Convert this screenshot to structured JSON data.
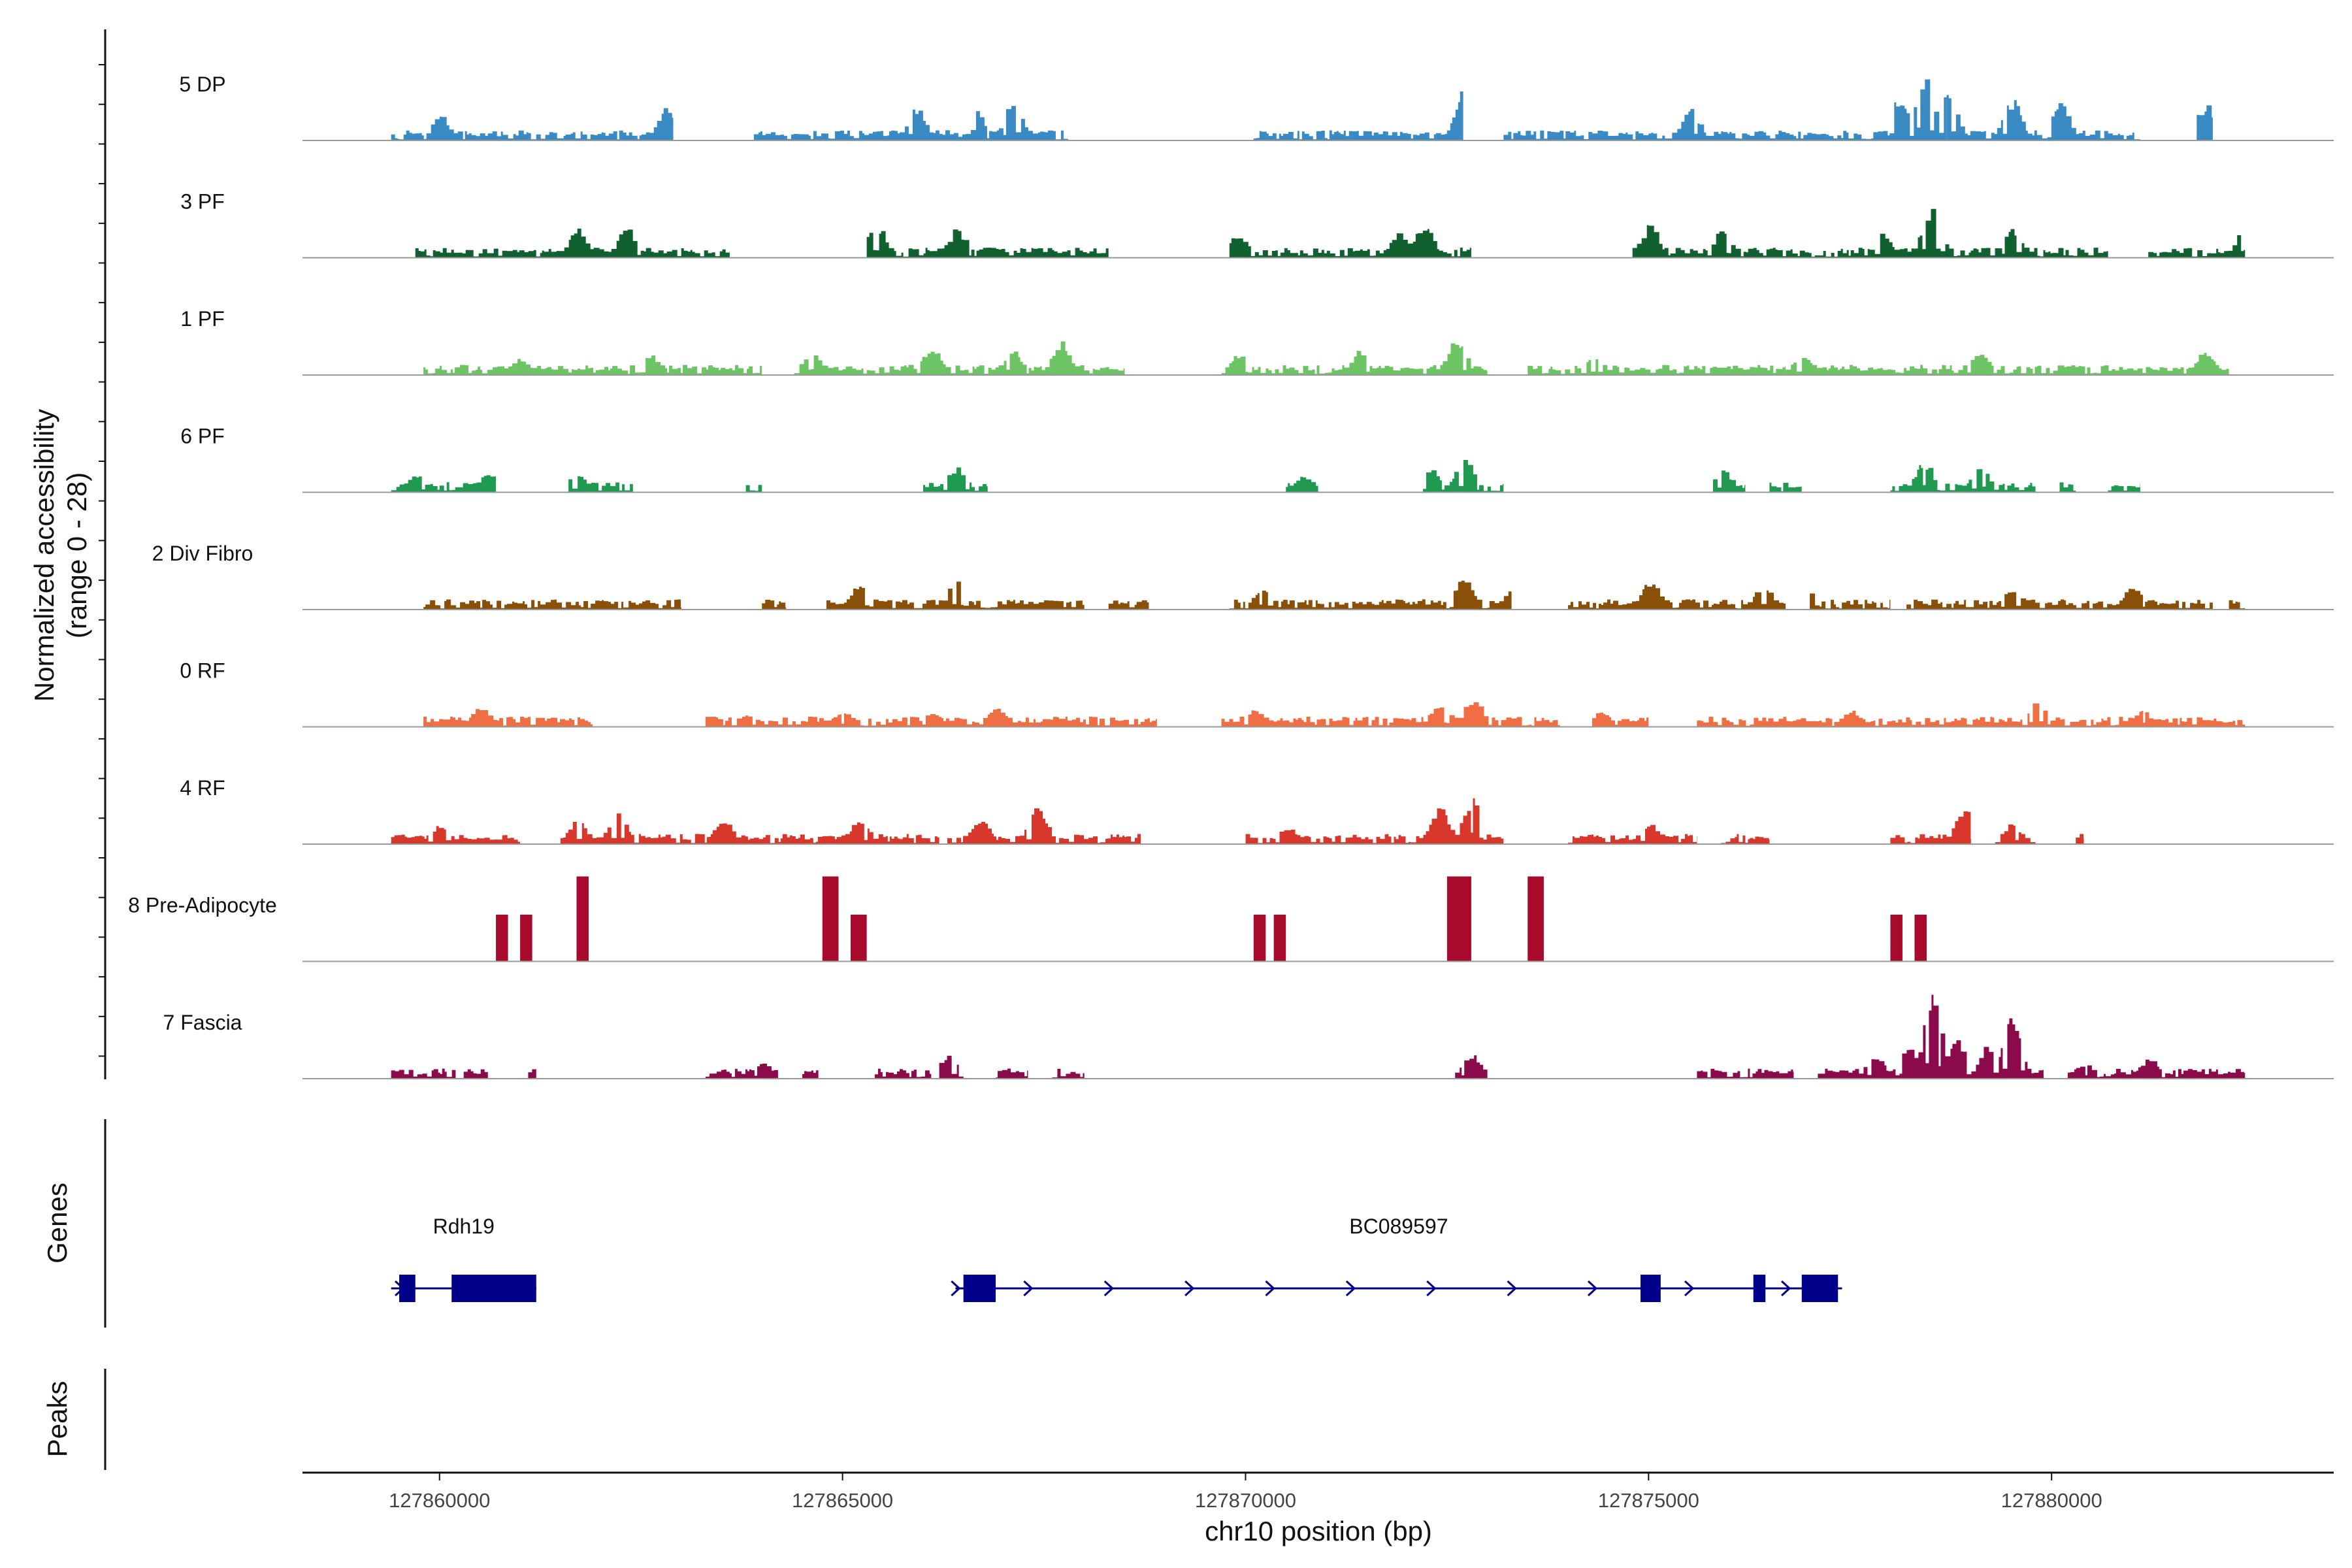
{
  "chart_data": {
    "type": "area",
    "title": "",
    "y_axis_title_line1": "Normalized accessibility",
    "y_axis_title_line2": "(range 0 - 28)",
    "ylim": [
      0,
      28
    ],
    "xlabel": "chr10 position (bp)",
    "xlim": [
      127858300,
      127883500
    ],
    "x_ticks": [
      127860000,
      127865000,
      127870000,
      127875000,
      127880000
    ],
    "x_tick_labels": [
      "127860000",
      "127865000",
      "127870000",
      "127875000",
      "127880000"
    ],
    "genes_panel_label": "Genes",
    "peaks_panel_label": "Peaks",
    "peaks": [],
    "tracks": [
      {
        "name": "5 DP",
        "color": "#3a8ac4",
        "regions": [
          [
            127859400,
            127862900
          ],
          [
            127863900,
            127867800
          ],
          [
            127870100,
            127872700
          ],
          [
            127873200,
            127878700
          ],
          [
            127878700,
            127881100
          ],
          [
            127881800,
            127882000
          ]
        ],
        "peaks": [
          [
            127860000,
            0.3
          ],
          [
            127862800,
            0.45
          ],
          [
            127865900,
            0.4
          ],
          [
            127866600,
            0.5
          ],
          [
            127867100,
            0.45
          ],
          [
            127872700,
            0.65
          ],
          [
            127875500,
            0.4
          ],
          [
            127878100,
            0.55
          ],
          [
            127878400,
            0.75
          ],
          [
            127878700,
            0.6
          ],
          [
            127879500,
            0.5
          ],
          [
            127880100,
            0.45
          ],
          [
            127881900,
            0.45
          ]
        ]
      },
      {
        "name": "3 PF",
        "color": "#11602f",
        "regions": [
          [
            127859700,
            127863600
          ],
          [
            127865300,
            127868300
          ],
          [
            127869800,
            127872800
          ],
          [
            127874800,
            127878300
          ],
          [
            127878300,
            127880700
          ],
          [
            127881200,
            127882400
          ]
        ],
        "peaks": [
          [
            127861700,
            0.35
          ],
          [
            127862300,
            0.35
          ],
          [
            127865400,
            0.4
          ],
          [
            127866400,
            0.35
          ],
          [
            127869900,
            0.3
          ],
          [
            127871900,
            0.3
          ],
          [
            127872200,
            0.4
          ],
          [
            127875000,
            0.4
          ],
          [
            127875900,
            0.35
          ],
          [
            127877900,
            0.3
          ],
          [
            127878500,
            0.65
          ],
          [
            127879500,
            0.35
          ],
          [
            127882400,
            0.4
          ]
        ]
      },
      {
        "name": "1 PF",
        "color": "#6cc464",
        "regions": [
          [
            127859800,
            127864000
          ],
          [
            127864400,
            127868500
          ],
          [
            127869700,
            127873000
          ],
          [
            127873500,
            127876700
          ],
          [
            127876700,
            127878600
          ],
          [
            127878600,
            127882200
          ]
        ],
        "peaks": [
          [
            127861000,
            0.2
          ],
          [
            127862600,
            0.25
          ],
          [
            127864600,
            0.3
          ],
          [
            127866100,
            0.35
          ],
          [
            127867100,
            0.3
          ],
          [
            127867700,
            0.4
          ],
          [
            127869900,
            0.25
          ],
          [
            127871400,
            0.3
          ],
          [
            127872600,
            0.45
          ],
          [
            127874300,
            0.2
          ],
          [
            127876900,
            0.25
          ],
          [
            127879100,
            0.3
          ],
          [
            127881900,
            0.3
          ]
        ]
      },
      {
        "name": "6 PF",
        "color": "#1f9a50",
        "regions": [
          [
            127859400,
            127860700
          ],
          [
            127861600,
            127862400
          ],
          [
            127863800,
            127864000
          ],
          [
            127866000,
            127866800
          ],
          [
            127870500,
            127870900
          ],
          [
            127872200,
            127873200
          ],
          [
            127875800,
            127876200
          ],
          [
            127876500,
            127876900
          ],
          [
            127878000,
            127879800
          ],
          [
            127880100,
            127880300
          ],
          [
            127880700,
            127881100
          ]
        ],
        "peaks": [
          [
            127859700,
            0.2
          ],
          [
            127860600,
            0.25
          ],
          [
            127861700,
            0.25
          ],
          [
            127866400,
            0.3
          ],
          [
            127870700,
            0.2
          ],
          [
            127872300,
            0.3
          ],
          [
            127872700,
            0.4
          ],
          [
            127875900,
            0.3
          ],
          [
            127878400,
            0.35
          ],
          [
            127879100,
            0.3
          ]
        ]
      },
      {
        "name": "2 Div Fibro",
        "color": "#8a500a",
        "regions": [
          [
            127859800,
            127863000
          ],
          [
            127864000,
            127864300
          ],
          [
            127864800,
            127868000
          ],
          [
            127868300,
            127868800
          ],
          [
            127869800,
            127873300
          ],
          [
            127874000,
            127876700
          ],
          [
            127877000,
            127878000
          ],
          [
            127878200,
            127882000
          ],
          [
            127882200,
            127882400
          ]
        ],
        "peaks": [
          [
            127865200,
            0.3
          ],
          [
            127866400,
            0.35
          ],
          [
            127870200,
            0.25
          ],
          [
            127872700,
            0.4
          ],
          [
            127873300,
            0.3
          ],
          [
            127875000,
            0.35
          ],
          [
            127876400,
            0.3
          ],
          [
            127877000,
            0.25
          ],
          [
            127879500,
            0.25
          ],
          [
            127881000,
            0.3
          ]
        ]
      },
      {
        "name": "0 RF",
        "color": "#ef6e43",
        "regions": [
          [
            127859800,
            127861900
          ],
          [
            127863300,
            127868900
          ],
          [
            127869700,
            127873900
          ],
          [
            127874300,
            127875000
          ],
          [
            127875600,
            127882400
          ]
        ],
        "peaks": [
          [
            127860500,
            0.25
          ],
          [
            127863800,
            0.15
          ],
          [
            127865000,
            0.2
          ],
          [
            127866100,
            0.2
          ],
          [
            127866900,
            0.25
          ],
          [
            127870100,
            0.2
          ],
          [
            127872400,
            0.3
          ],
          [
            127872800,
            0.35
          ],
          [
            127874400,
            0.2
          ],
          [
            127877500,
            0.2
          ],
          [
            127879800,
            0.3
          ],
          [
            127881100,
            0.2
          ]
        ]
      },
      {
        "name": "4 RF",
        "color": "#d8382b",
        "regions": [
          [
            127859400,
            127861000
          ],
          [
            127861500,
            127866200
          ],
          [
            127866300,
            127868700
          ],
          [
            127870000,
            127873200
          ],
          [
            127874000,
            127875600
          ],
          [
            127875900,
            127876500
          ],
          [
            127878000,
            127879000
          ],
          [
            127879300,
            127879800
          ],
          [
            127880300,
            127880400
          ]
        ],
        "peaks": [
          [
            127860000,
            0.25
          ],
          [
            127861700,
            0.3
          ],
          [
            127862200,
            0.4
          ],
          [
            127863500,
            0.3
          ],
          [
            127865200,
            0.3
          ],
          [
            127866700,
            0.3
          ],
          [
            127867400,
            0.5
          ],
          [
            127870500,
            0.2
          ],
          [
            127872400,
            0.45
          ],
          [
            127872800,
            0.55
          ],
          [
            127875000,
            0.25
          ],
          [
            127878900,
            0.45
          ],
          [
            127879500,
            0.25
          ]
        ]
      },
      {
        "name": "8 Pre-Adipocyte",
        "color": "#a70a2a",
        "blocks": [
          [
            127860700,
            127860850,
            0.55
          ],
          [
            127861000,
            127861150,
            0.55
          ],
          [
            127861700,
            127861850,
            1.0
          ],
          [
            127864750,
            127864950,
            1.0
          ],
          [
            127865100,
            127865300,
            0.55
          ],
          [
            127870100,
            127870250,
            0.55
          ],
          [
            127870350,
            127870500,
            0.55
          ],
          [
            127872500,
            127872800,
            1.0
          ],
          [
            127873500,
            127873700,
            1.0
          ],
          [
            127878000,
            127878150,
            0.55
          ],
          [
            127878300,
            127878450,
            0.55
          ]
        ]
      },
      {
        "name": "7 Fascia",
        "color": "#8a0a4c",
        "regions": [
          [
            127859400,
            127860200
          ],
          [
            127860300,
            127860600
          ],
          [
            127861100,
            127861200
          ],
          [
            127863300,
            127864200
          ],
          [
            127864500,
            127864700
          ],
          [
            127865400,
            127866100
          ],
          [
            127866200,
            127866500
          ],
          [
            127866900,
            127867300
          ],
          [
            127867600,
            127868000
          ],
          [
            127872600,
            127873000
          ],
          [
            127875600,
            127876800
          ],
          [
            127877100,
            127879900
          ],
          [
            127880200,
            127882400
          ]
        ],
        "peaks": [
          [
            127862000,
            0.2
          ],
          [
            127864000,
            0.2
          ],
          [
            127866300,
            0.3
          ],
          [
            127872800,
            0.3
          ],
          [
            127877800,
            0.3
          ],
          [
            127878200,
            0.4
          ],
          [
            127878500,
            1.0
          ],
          [
            127878800,
            0.5
          ],
          [
            127879200,
            0.4
          ],
          [
            127879500,
            0.75
          ],
          [
            127880400,
            0.2
          ],
          [
            127881200,
            0.25
          ]
        ]
      }
    ],
    "genes": [
      {
        "name": "Rdh19",
        "start": 127859400,
        "end": 127861200,
        "strand": "+",
        "exons": [
          [
            127859500,
            127859700
          ],
          [
            127860150,
            127861200
          ]
        ],
        "arrows": [
          127859500
        ]
      },
      {
        "name": "BC089597",
        "start": 127866400,
        "end": 127877400,
        "strand": "+",
        "exons": [
          [
            127866500,
            127866900
          ],
          [
            127874900,
            127875150
          ],
          [
            127876300,
            127876450
          ],
          [
            127876900,
            127877350
          ]
        ],
        "arrows": [
          127866400,
          127867300,
          127868300,
          127869300,
          127870300,
          127871300,
          127872300,
          127873300,
          127874300,
          127875500,
          127876700
        ]
      }
    ]
  }
}
